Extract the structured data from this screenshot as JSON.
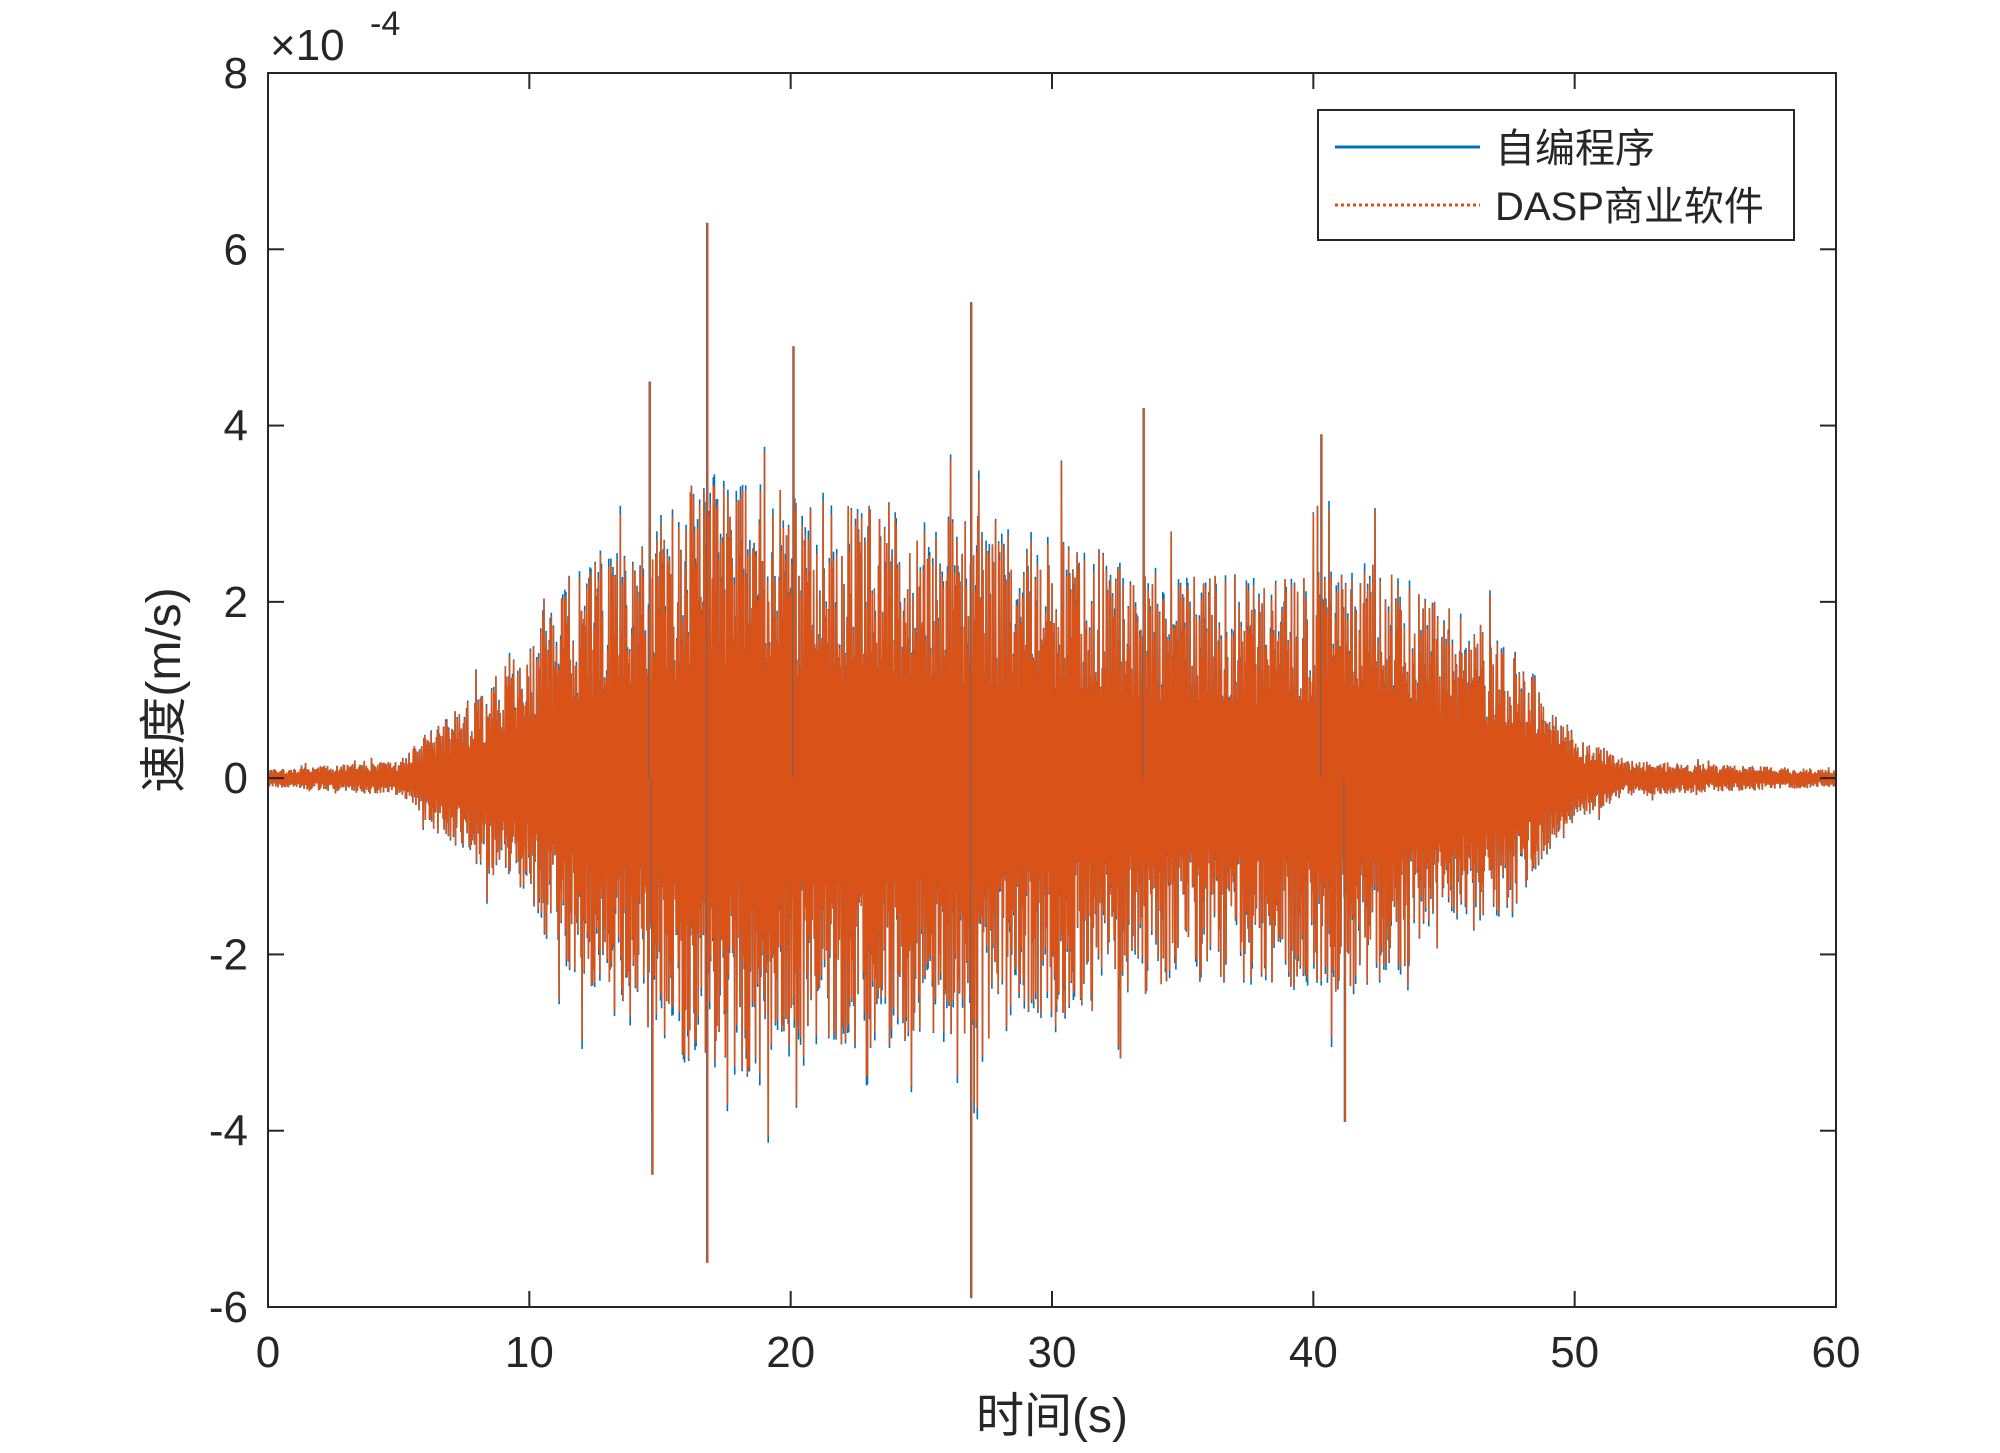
{
  "chart_data": {
    "type": "line",
    "xlabel": "时间(s)",
    "ylabel": "速度(m/s)",
    "xlim": [
      0,
      60
    ],
    "ylim": [
      -0.0006,
      0.0008
    ],
    "xticks": [
      0,
      10,
      20,
      30,
      40,
      50,
      60
    ],
    "xtick_labels": [
      "0",
      "10",
      "20",
      "30",
      "40",
      "50",
      "60"
    ],
    "yticks": [
      -0.0006,
      -0.0004,
      -0.0002,
      0,
      0.0002,
      0.0004,
      0.0006,
      0.0008
    ],
    "ytick_labels": [
      "-6",
      "-4",
      "-2",
      "0",
      "2",
      "4",
      "6",
      "8"
    ],
    "y_exponent": {
      "base": "×10",
      "power": "-4"
    },
    "grid": false,
    "legend_position": "top-right",
    "envelope_description_points": {
      "t": [
        0,
        5,
        6,
        8,
        10,
        12,
        15,
        17,
        20,
        25,
        27,
        30,
        35,
        40,
        42,
        45,
        48,
        50,
        52,
        60
      ],
      "upper": [
        1e-05,
        2e-05,
        5e-05,
        0.0001,
        0.00015,
        0.00025,
        0.0003,
        0.00035,
        0.00033,
        0.0003,
        0.0003,
        0.00028,
        0.00023,
        0.00024,
        0.00025,
        0.0002,
        0.00014,
        5e-05,
        2e-05,
        1e-05
      ]
    },
    "peaks": [
      {
        "t": 16.8,
        "v": 0.00063
      },
      {
        "t": 16.8,
        "v": -0.00055
      },
      {
        "t": 26.9,
        "v": 0.00054
      },
      {
        "t": 26.9,
        "v": -0.00059
      },
      {
        "t": 14.6,
        "v": 0.00045
      },
      {
        "t": 14.7,
        "v": -0.00045
      },
      {
        "t": 20.1,
        "v": 0.00049
      },
      {
        "t": 40.3,
        "v": 0.00039
      },
      {
        "t": 41.2,
        "v": -0.00039
      },
      {
        "t": 33.5,
        "v": 0.00042
      }
    ],
    "series": [
      {
        "name": "自编程序",
        "color": "#0072BD",
        "style": "solid"
      },
      {
        "name": "DASP商业软件",
        "color": "#D95319",
        "style": "dotted"
      }
    ]
  }
}
